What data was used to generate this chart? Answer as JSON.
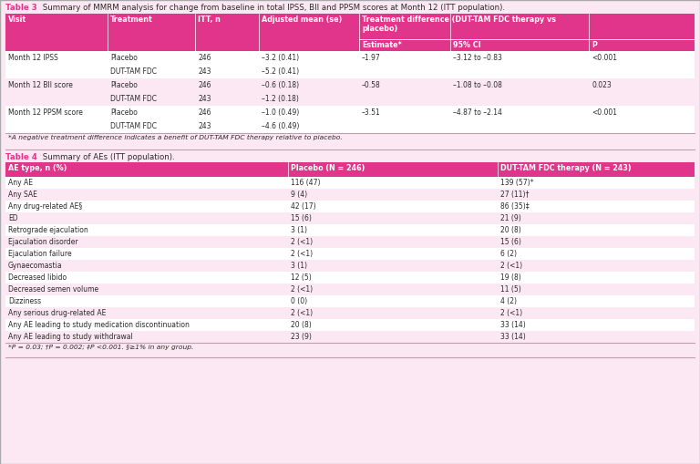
{
  "bg_color": "#fce8f2",
  "header_color": "#e0358a",
  "header_text_color": "#ffffff",
  "text_color": "#2a2a2a",
  "pink_text": "#e0358a",
  "white": "#ffffff",
  "footnote_bg": "#fce8f2",
  "row_alt": "#fce8f2",
  "border_color": "#c0a0b0",
  "table3_title_bold": "Table 3",
  "table3_title_rest": " Summary of MMRM analysis for change from baseline in total IPSS, BII and PPSM scores at Month 12 (ITT population).",
  "table3_col_labels": [
    "Visit",
    "Treatment",
    "ITT, n",
    "Adjusted mean (se)",
    "Treatment difference (DUT-TAM FDC therapy vs\nplacebo)"
  ],
  "table3_subheaders": [
    "Estimate*",
    "95% CI",
    "P"
  ],
  "table3_rows": [
    [
      "Month 12 IPSS",
      "Placebo",
      "246",
      "–3.2 (0.41)",
      "–1.97",
      "–3.12 to –0.83",
      "<0.001"
    ],
    [
      "",
      "DUT-TAM FDC",
      "243",
      "–5.2 (0.41)",
      "",
      "",
      ""
    ],
    [
      "Month 12 BII score",
      "Placebo",
      "246",
      "–0.6 (0.18)",
      "–0.58",
      "–1.08 to –0.08",
      "0.023"
    ],
    [
      "",
      "DUT-TAM FDC",
      "243",
      "–1.2 (0.18)",
      "",
      "",
      ""
    ],
    [
      "Month 12 PPSM score",
      "Placebo",
      "246",
      "–1.0 (0.49)",
      "–3.51",
      "–4.87 to –2.14",
      "<0.001"
    ],
    [
      "",
      "DUT-TAM FDC",
      "243",
      "–4.6 (0.49)",
      "",
      "",
      ""
    ]
  ],
  "table3_footnote": "*A negative treatment difference indicates a benefit of DUT-TAM FDC therapy relative to placebo.",
  "table4_title_bold": "Table 4",
  "table4_title_rest": " Summary of AEs (ITT population).",
  "table4_headers": [
    "AE type, n (%)",
    "Placebo (N = 246)",
    "DUT-TAM FDC therapy (N = 243)"
  ],
  "table4_rows": [
    [
      "Any AE",
      "116 (47)",
      "139 (57)*"
    ],
    [
      "Any SAE",
      "9 (4)",
      "27 (11)†"
    ],
    [
      "Any drug-related AE§",
      "42 (17)",
      "86 (35)‡"
    ],
    [
      "ED",
      "15 (6)",
      "21 (9)"
    ],
    [
      "Retrograde ejaculation",
      "3 (1)",
      "20 (8)"
    ],
    [
      "Ejaculation disorder",
      "2 (<1)",
      "15 (6)"
    ],
    [
      "Ejaculation failure",
      "2 (<1)",
      "6 (2)"
    ],
    [
      "Gynaecomastia",
      "3 (1)",
      "2 (<1)"
    ],
    [
      "Decreased libido",
      "12 (5)",
      "19 (8)"
    ],
    [
      "Decreased semen volume",
      "2 (<1)",
      "11 (5)"
    ],
    [
      "Dizziness",
      "0 (0)",
      "4 (2)"
    ],
    [
      "Any serious drug-related AE",
      "2 (<1)",
      "2 (<1)"
    ],
    [
      "Any AE leading to study medication discontinuation",
      "20 (8)",
      "33 (14)"
    ],
    [
      "Any AE leading to study withdrawal",
      "23 (9)",
      "33 (14)"
    ]
  ],
  "table4_footnote": "*P = 0.03; †P = 0.002; ‡P <0.001. §≥1% in any group."
}
